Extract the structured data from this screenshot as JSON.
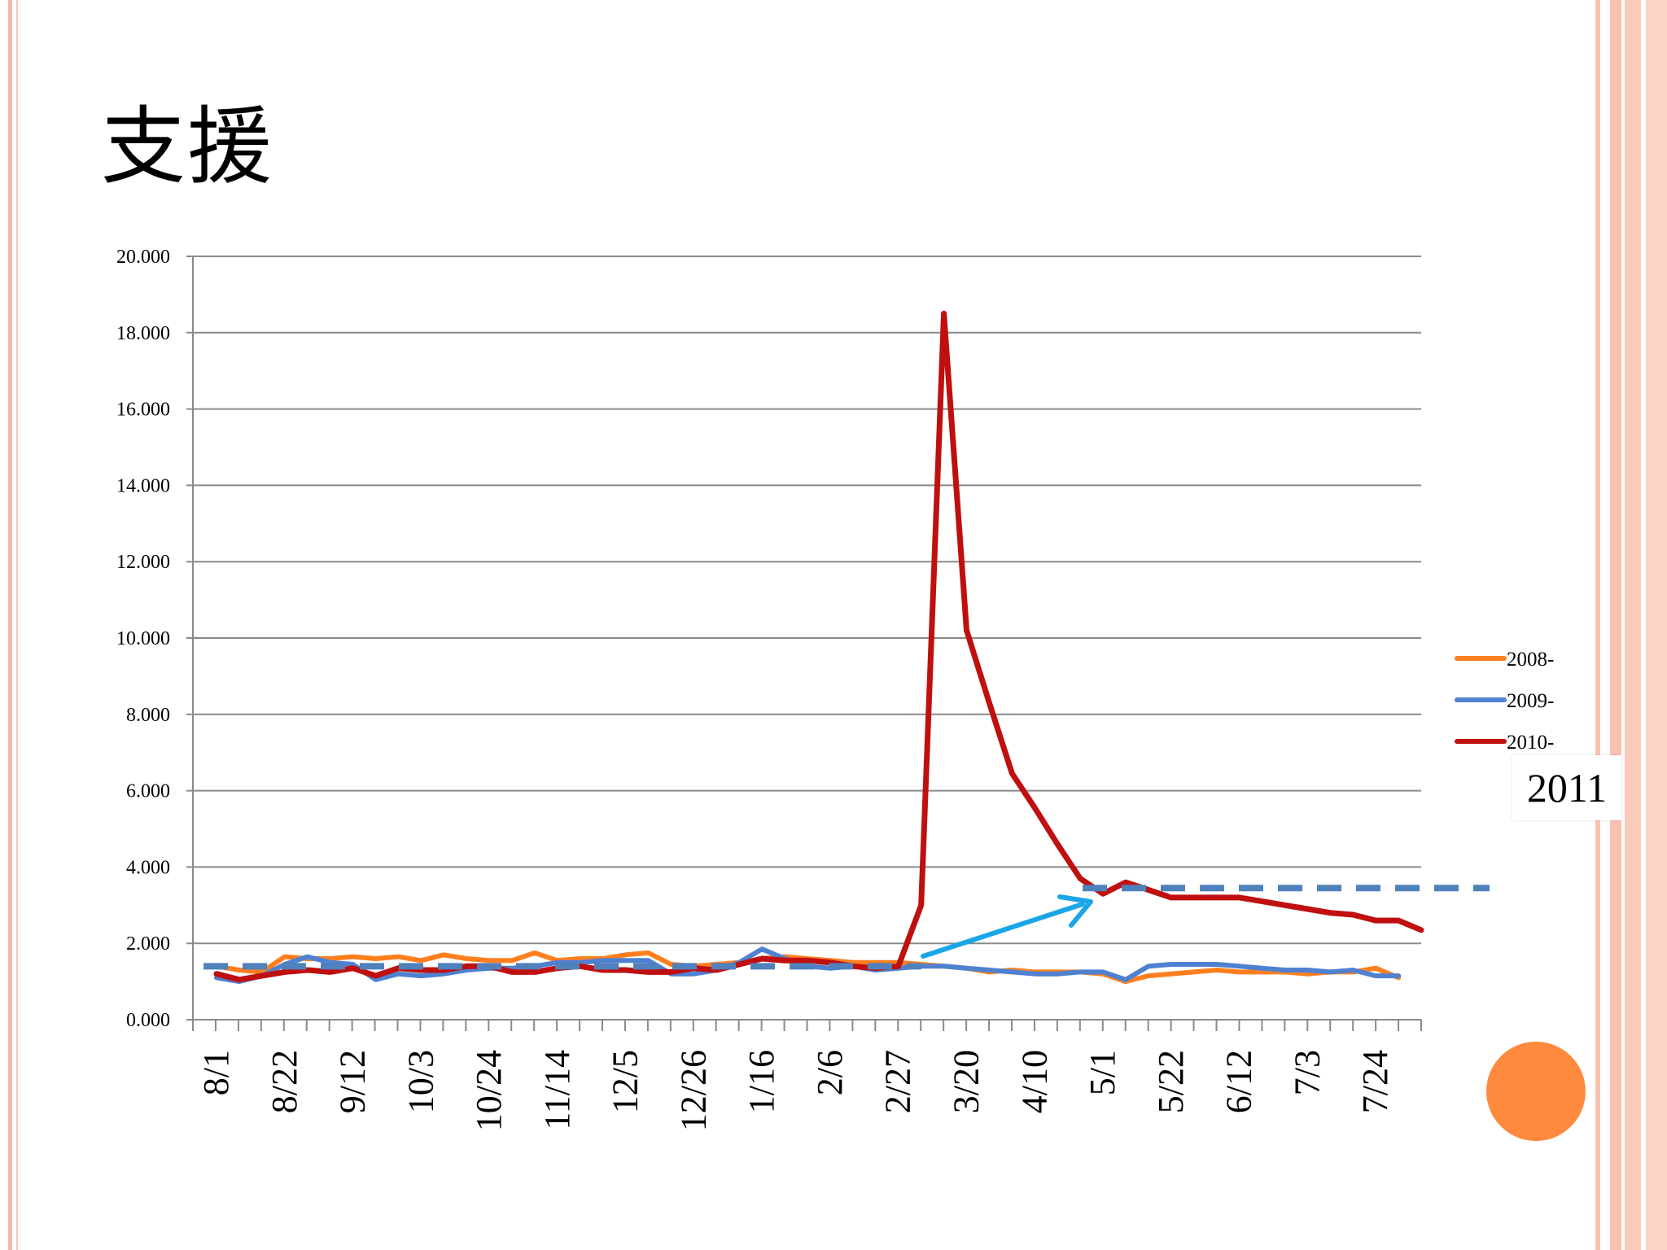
{
  "slide": {
    "title": "支援",
    "annotation_year": "2011",
    "colors": {
      "border": "#f7b7a3",
      "accent_circle": "#ff8a3d",
      "reference_line": "#4f81bd",
      "arrow": "#1aa6e6"
    }
  },
  "chart_data": {
    "type": "line",
    "title": "",
    "xlabel": "",
    "ylabel": "",
    "ylim": [
      0,
      20
    ],
    "y_ticks": [
      "0.000",
      "2.000",
      "4.000",
      "6.000",
      "8.000",
      "10.000",
      "12.000",
      "14.000",
      "16.000",
      "18.000",
      "20.000"
    ],
    "x_tick_labels": [
      "8/1",
      "8/22",
      "9/12",
      "10/3",
      "10/24",
      "11/14",
      "12/5",
      "12/26",
      "1/16",
      "2/6",
      "2/27",
      "3/20",
      "4/10",
      "5/1",
      "5/22",
      "6/12",
      "7/3",
      "7/24"
    ],
    "legend_position": "right",
    "series": [
      {
        "name": "2008-",
        "color": "#ff7f1f",
        "values": [
          1.4,
          1.3,
          1.25,
          1.65,
          1.6,
          1.6,
          1.65,
          1.6,
          1.65,
          1.55,
          1.7,
          1.6,
          1.55,
          1.55,
          1.75,
          1.55,
          1.6,
          1.6,
          1.7,
          1.75,
          1.45,
          1.4,
          1.45,
          1.5,
          1.6,
          1.65,
          1.6,
          1.55,
          1.5,
          1.5,
          1.5,
          1.45,
          1.4,
          1.35,
          1.25,
          1.3,
          1.25,
          1.25,
          1.25,
          1.2,
          1.0,
          1.15,
          1.2,
          1.25,
          1.3,
          1.25,
          1.25,
          1.25,
          1.2,
          1.25,
          1.25,
          1.35,
          1.1
        ]
      },
      {
        "name": "2009-",
        "color": "#4f81d1",
        "values": [
          1.1,
          1.0,
          1.15,
          1.45,
          1.65,
          1.5,
          1.45,
          1.05,
          1.2,
          1.15,
          1.2,
          1.3,
          1.35,
          1.35,
          1.4,
          1.5,
          1.5,
          1.55,
          1.55,
          1.55,
          1.2,
          1.2,
          1.3,
          1.5,
          1.85,
          1.6,
          1.4,
          1.35,
          1.4,
          1.3,
          1.35,
          1.4,
          1.4,
          1.35,
          1.3,
          1.25,
          1.2,
          1.2,
          1.25,
          1.25,
          1.05,
          1.4,
          1.45,
          1.45,
          1.45,
          1.4,
          1.35,
          1.3,
          1.3,
          1.25,
          1.3,
          1.15,
          1.15
        ]
      },
      {
        "name": "2010-",
        "color": "#c00f0f",
        "values": [
          1.2,
          1.05,
          1.15,
          1.25,
          1.3,
          1.25,
          1.35,
          1.15,
          1.35,
          1.3,
          1.3,
          1.4,
          1.4,
          1.25,
          1.25,
          1.35,
          1.4,
          1.3,
          1.3,
          1.25,
          1.25,
          1.35,
          1.3,
          1.45,
          1.6,
          1.55,
          1.55,
          1.5,
          1.4,
          1.35,
          1.4,
          3.0,
          18.5,
          10.2,
          8.3,
          6.45,
          5.55,
          4.6,
          3.7,
          3.3,
          3.6,
          3.4,
          3.2,
          3.2,
          3.2,
          3.2,
          3.1,
          3.0,
          2.9,
          2.8,
          2.75,
          2.6,
          2.6,
          2.35
        ]
      }
    ],
    "reference_lines": [
      {
        "label": "",
        "y": 1.4,
        "from_index": 0,
        "to_index": 31
      },
      {
        "label": "",
        "y": 3.45,
        "from_index": 39,
        "to_index": 55
      }
    ]
  }
}
